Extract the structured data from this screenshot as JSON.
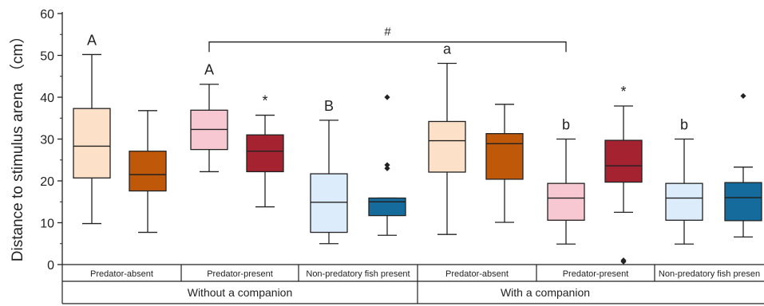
{
  "chart_data": {
    "type": "box",
    "ylabel": "Distance to stimulus arena （cm）",
    "ylim": [
      0,
      60
    ],
    "yticks": [
      0,
      10,
      20,
      30,
      40,
      50,
      60
    ],
    "grid": false,
    "groups": [
      {
        "label": "Predator-absent"
      },
      {
        "label": "Predator-present"
      },
      {
        "label": "Non-predatory fish present"
      },
      {
        "label": "Predator-absent"
      },
      {
        "label": "Predator-present"
      },
      {
        "label": "Non-predatory fish presen"
      }
    ],
    "companion_labels": [
      "Without a companion",
      "With a companion"
    ],
    "bracket_label": "#",
    "colors": {
      "light_orange": "#fde0c8",
      "dark_orange": "#c0580a",
      "light_pink": "#f7c8d2",
      "dark_red": "#a52330",
      "light_blue": "#dcecfb",
      "dark_blue": "#156b9c",
      "outline": "#222222"
    },
    "boxes": [
      {
        "group": 0,
        "slot": 0,
        "min": 9.8,
        "q1": 20.7,
        "median": 28.3,
        "q3": 37.3,
        "max": 50.2,
        "color": "light_orange",
        "label": "A",
        "outliers": []
      },
      {
        "group": 0,
        "slot": 1,
        "min": 7.7,
        "q1": 17.6,
        "median": 21.5,
        "q3": 27.1,
        "max": 36.8,
        "color": "dark_orange",
        "label": "",
        "outliers": []
      },
      {
        "group": 1,
        "slot": 0,
        "min": 22.2,
        "q1": 27.5,
        "median": 32.3,
        "q3": 36.9,
        "max": 43.1,
        "color": "light_pink",
        "label": "A",
        "outliers": []
      },
      {
        "group": 1,
        "slot": 1,
        "min": 13.8,
        "q1": 22.2,
        "median": 27.1,
        "q3": 31.0,
        "max": 35.7,
        "color": "dark_red",
        "label": "*",
        "outliers": []
      },
      {
        "group": 2,
        "slot": 0,
        "min": 5.0,
        "q1": 7.7,
        "median": 14.9,
        "q3": 21.7,
        "max": 34.5,
        "color": "light_blue",
        "label": "B",
        "outliers": []
      },
      {
        "group": 2,
        "slot": 1,
        "min": 7.0,
        "q1": 11.7,
        "median": 15.0,
        "q3": 15.9,
        "max": 15.9,
        "color": "dark_blue",
        "label": "",
        "outliers": [
          23.0,
          23.8,
          40.0
        ]
      },
      {
        "group": 3,
        "slot": 0,
        "min": 7.2,
        "q1": 22.1,
        "median": 29.6,
        "q3": 34.2,
        "max": 48.1,
        "color": "light_orange",
        "label": "a",
        "outliers": []
      },
      {
        "group": 3,
        "slot": 1,
        "min": 10.1,
        "q1": 20.4,
        "median": 28.9,
        "q3": 31.3,
        "max": 38.3,
        "color": "dark_orange",
        "label": "",
        "outliers": []
      },
      {
        "group": 4,
        "slot": 0,
        "min": 4.9,
        "q1": 10.6,
        "median": 15.9,
        "q3": 19.4,
        "max": 30.0,
        "color": "light_pink",
        "label": "b",
        "outliers": []
      },
      {
        "group": 4,
        "slot": 1,
        "min": 12.5,
        "q1": 19.7,
        "median": 23.6,
        "q3": 29.7,
        "max": 37.9,
        "color": "dark_red",
        "label": "*",
        "outliers": [
          0.7,
          1.0
        ]
      },
      {
        "group": 5,
        "slot": 0,
        "min": 4.9,
        "q1": 10.6,
        "median": 15.9,
        "q3": 19.4,
        "max": 30.0,
        "color": "light_blue",
        "label": "b",
        "outliers": []
      },
      {
        "group": 5,
        "slot": 1,
        "min": 6.6,
        "q1": 10.5,
        "median": 16.0,
        "q3": 19.6,
        "max": 23.3,
        "color": "dark_blue",
        "label": "",
        "outliers": [
          40.3
        ]
      }
    ],
    "bracket": {
      "from_group": 1,
      "to_group": 4,
      "y": 53.2,
      "drop_to": 50.8
    }
  }
}
